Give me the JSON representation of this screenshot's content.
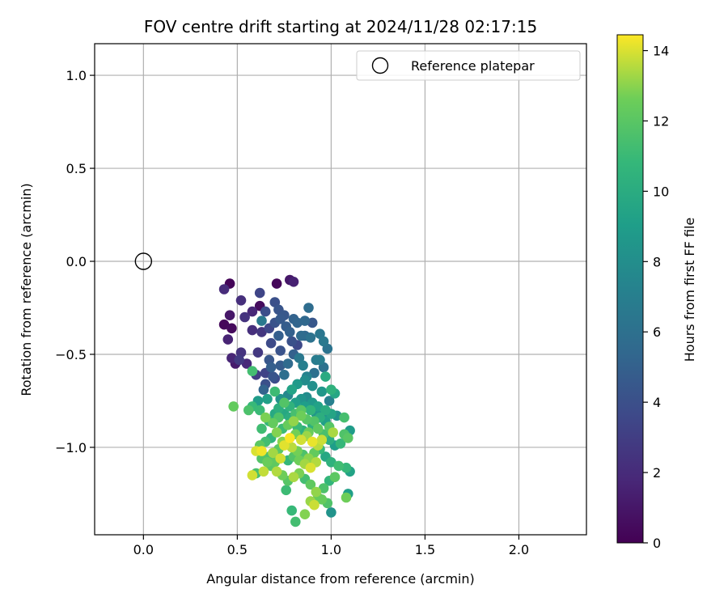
{
  "chart_data": {
    "type": "scatter",
    "title": "FOV centre drift starting at 2024/11/28 02:17:15",
    "xlabel": "Angular distance from reference (arcmin)",
    "ylabel": "Rotation from reference (arcmin)",
    "xlim": [
      -0.26,
      2.36
    ],
    "ylim": [
      -1.47,
      1.17
    ],
    "xticks": [
      0.0,
      0.5,
      1.0,
      1.5,
      2.0
    ],
    "xtick_labels": [
      "0.0",
      "0.5",
      "1.0",
      "1.5",
      "2.0"
    ],
    "yticks": [
      1.0,
      0.5,
      0.0,
      -0.5,
      -1.0
    ],
    "ytick_labels": [
      "1.0",
      "0.5",
      "0.0",
      "−0.5",
      "−1.0"
    ],
    "grid": true,
    "legend": {
      "placement": "top-right",
      "entries": [
        "Reference platepar"
      ]
    },
    "reference_point": {
      "x": 0.0,
      "y": 0.0,
      "label": "Reference platepar",
      "marker": "open circle"
    },
    "colorbar": {
      "label": "Hours from first FF file",
      "colormap": "viridis",
      "range": [
        0,
        14.45
      ],
      "ticks": [
        0,
        2,
        4,
        6,
        8,
        10,
        12,
        14
      ],
      "tick_labels": [
        "0",
        "2",
        "4",
        "6",
        "8",
        "10",
        "12",
        "14"
      ]
    },
    "points": [
      [
        0.46,
        -0.12,
        0.2
      ],
      [
        0.71,
        -0.12,
        0.3
      ],
      [
        0.78,
        -0.1,
        1.0
      ],
      [
        0.8,
        -0.11,
        1.5
      ],
      [
        0.43,
        -0.34,
        0.3
      ],
      [
        0.47,
        -0.36,
        0.4
      ],
      [
        0.46,
        -0.29,
        1.0
      ],
      [
        0.45,
        -0.42,
        1.6
      ],
      [
        0.43,
        -0.15,
        2.0
      ],
      [
        0.52,
        -0.21,
        2.2
      ],
      [
        0.62,
        -0.24,
        0.5
      ],
      [
        0.58,
        -0.27,
        1.8
      ],
      [
        0.54,
        -0.3,
        2.4
      ],
      [
        0.58,
        -0.37,
        2.2
      ],
      [
        0.63,
        -0.38,
        2.6
      ],
      [
        0.47,
        -0.52,
        1.7
      ],
      [
        0.49,
        -0.55,
        1.2
      ],
      [
        0.52,
        -0.49,
        2.4
      ],
      [
        0.51,
        -0.53,
        2.8
      ],
      [
        0.55,
        -0.55,
        1.9
      ],
      [
        0.61,
        -0.49,
        2.7
      ],
      [
        0.6,
        -0.61,
        3.0
      ],
      [
        0.62,
        -0.17,
        3.4
      ],
      [
        0.65,
        -0.27,
        3.9
      ],
      [
        0.7,
        -0.22,
        4.0
      ],
      [
        0.72,
        -0.26,
        4.3
      ],
      [
        0.73,
        -0.31,
        4.6
      ],
      [
        0.75,
        -0.29,
        4.5
      ],
      [
        0.7,
        -0.33,
        4.2
      ],
      [
        0.76,
        -0.35,
        4.8
      ],
      [
        0.78,
        -0.38,
        5.0
      ],
      [
        0.8,
        -0.31,
        5.1
      ],
      [
        0.82,
        -0.33,
        5.3
      ],
      [
        0.86,
        -0.32,
        5.5
      ],
      [
        0.88,
        -0.25,
        5.8
      ],
      [
        0.9,
        -0.33,
        4.4
      ],
      [
        0.84,
        -0.4,
        5.7
      ],
      [
        0.79,
        -0.43,
        4.1
      ],
      [
        0.72,
        -0.4,
        4.9
      ],
      [
        0.68,
        -0.44,
        3.7
      ],
      [
        0.73,
        -0.48,
        4.2
      ],
      [
        0.8,
        -0.5,
        5.0
      ],
      [
        0.82,
        -0.45,
        3.6
      ],
      [
        0.86,
        -0.4,
        5.4
      ],
      [
        0.89,
        -0.41,
        6.1
      ],
      [
        0.94,
        -0.39,
        6.4
      ],
      [
        0.96,
        -0.43,
        6.6
      ],
      [
        0.98,
        -0.47,
        6.2
      ],
      [
        0.92,
        -0.53,
        6.8
      ],
      [
        0.91,
        -0.6,
        6.0
      ],
      [
        0.87,
        -0.62,
        7.2
      ],
      [
        0.85,
        -0.56,
        7.0
      ],
      [
        0.83,
        -0.52,
        6.5
      ],
      [
        0.77,
        -0.55,
        5.6
      ],
      [
        0.73,
        -0.56,
        4.7
      ],
      [
        0.69,
        -0.62,
        4.3
      ],
      [
        0.65,
        -0.66,
        4.0
      ],
      [
        0.64,
        -0.69,
        5.2
      ],
      [
        0.7,
        -0.63,
        3.8
      ],
      [
        0.75,
        -0.61,
        5.9
      ],
      [
        0.65,
        -0.6,
        3.3
      ],
      [
        0.67,
        -0.53,
        4.4
      ],
      [
        0.68,
        -0.57,
        4.9
      ],
      [
        0.63,
        -0.32,
        6.6
      ],
      [
        0.67,
        -0.36,
        3.5
      ],
      [
        0.94,
        -0.53,
        6.9
      ],
      [
        0.96,
        -0.57,
        6.1
      ],
      [
        0.99,
        -0.75,
        7.1
      ],
      [
        0.97,
        -0.62,
        9.9
      ],
      [
        1.0,
        -0.69,
        10.4
      ],
      [
        1.02,
        -0.71,
        9.6
      ],
      [
        0.95,
        -0.7,
        8.6
      ],
      [
        0.9,
        -0.67,
        8.1
      ],
      [
        0.86,
        -0.64,
        7.9
      ],
      [
        0.82,
        -0.66,
        8.8
      ],
      [
        0.79,
        -0.69,
        9.4
      ],
      [
        0.77,
        -0.72,
        7.6
      ],
      [
        0.73,
        -0.74,
        8.3
      ],
      [
        0.7,
        -0.7,
        11.1
      ],
      [
        0.66,
        -0.74,
        9.2
      ],
      [
        0.61,
        -0.75,
        8.9
      ],
      [
        0.58,
        -0.78,
        10.9
      ],
      [
        0.56,
        -0.8,
        11.6
      ],
      [
        0.58,
        -0.59,
        11.3
      ],
      [
        0.48,
        -0.78,
        12.3
      ],
      [
        0.62,
        -0.8,
        11.0
      ],
      [
        0.65,
        -0.84,
        12.8
      ],
      [
        0.63,
        -0.9,
        11.2
      ],
      [
        0.67,
        -0.86,
        10.7
      ],
      [
        0.7,
        -0.82,
        9.8
      ],
      [
        0.72,
        -0.79,
        10.2
      ],
      [
        0.75,
        -0.76,
        11.8
      ],
      [
        0.78,
        -0.78,
        10.5
      ],
      [
        0.81,
        -0.76,
        9.1
      ],
      [
        0.84,
        -0.74,
        8.4
      ],
      [
        0.87,
        -0.73,
        7.8
      ],
      [
        0.9,
        -0.76,
        8.7
      ],
      [
        0.93,
        -0.78,
        9.3
      ],
      [
        0.97,
        -0.8,
        10.0
      ],
      [
        1.0,
        -0.82,
        9.5
      ],
      [
        1.03,
        -0.83,
        8.2
      ],
      [
        1.07,
        -0.84,
        11.4
      ],
      [
        1.1,
        -0.91,
        8.9
      ],
      [
        1.09,
        -0.95,
        12.0
      ],
      [
        1.07,
        -0.93,
        11.7
      ],
      [
        1.05,
        -0.98,
        10.8
      ],
      [
        1.02,
        -0.99,
        9.0
      ],
      [
        0.99,
        -0.96,
        10.1
      ],
      [
        0.96,
        -0.93,
        11.5
      ],
      [
        0.93,
        -0.9,
        12.2
      ],
      [
        0.9,
        -0.88,
        10.3
      ],
      [
        0.87,
        -0.85,
        11.9
      ],
      [
        0.84,
        -0.83,
        12.6
      ],
      [
        0.8,
        -0.86,
        13.1
      ],
      [
        0.77,
        -0.88,
        12.4
      ],
      [
        0.74,
        -0.9,
        11.1
      ],
      [
        0.71,
        -0.92,
        12.9
      ],
      [
        0.68,
        -0.95,
        10.6
      ],
      [
        0.65,
        -0.97,
        11.3
      ],
      [
        0.62,
        -0.99,
        12.1
      ],
      [
        0.6,
        -1.02,
        14.0
      ],
      [
        0.63,
        -1.06,
        11.8
      ],
      [
        0.66,
        -1.08,
        12.5
      ],
      [
        0.69,
        -1.03,
        13.3
      ],
      [
        0.72,
        -1.01,
        12.0
      ],
      [
        0.75,
        -0.99,
        14.1
      ],
      [
        0.79,
        -1.0,
        13.6
      ],
      [
        0.82,
        -1.02,
        12.7
      ],
      [
        0.85,
        -1.04,
        11.6
      ],
      [
        0.88,
        -1.06,
        13.0
      ],
      [
        0.91,
        -1.03,
        12.3
      ],
      [
        0.94,
        -1.01,
        10.9
      ],
      [
        0.97,
        -1.05,
        9.7
      ],
      [
        1.0,
        -1.08,
        10.4
      ],
      [
        1.04,
        -1.1,
        11.2
      ],
      [
        1.08,
        -1.11,
        10.8
      ],
      [
        1.1,
        -1.13,
        9.4
      ],
      [
        1.08,
        -1.27,
        12.6
      ],
      [
        1.09,
        -1.25,
        9.1
      ],
      [
        1.0,
        -1.35,
        8.3
      ],
      [
        0.98,
        -1.3,
        11.7
      ],
      [
        0.95,
        -1.28,
        12.4
      ],
      [
        0.92,
        -1.24,
        13.1
      ],
      [
        0.89,
        -1.2,
        12.2
      ],
      [
        0.86,
        -1.17,
        11.3
      ],
      [
        0.83,
        -1.14,
        12.8
      ],
      [
        0.8,
        -1.16,
        13.4
      ],
      [
        0.77,
        -1.18,
        11.9
      ],
      [
        0.74,
        -1.15,
        12.6
      ],
      [
        0.71,
        -1.13,
        13.5
      ],
      [
        0.68,
        -1.1,
        12.0
      ],
      [
        0.64,
        -1.13,
        13.7
      ],
      [
        0.6,
        -1.14,
        11.5
      ],
      [
        0.58,
        -1.15,
        13.9
      ],
      [
        0.63,
        -1.02,
        14.3
      ],
      [
        0.76,
        -1.23,
        11.1
      ],
      [
        0.79,
        -1.34,
        10.9
      ],
      [
        0.81,
        -1.4,
        11.3
      ],
      [
        0.86,
        -1.36,
        12.9
      ],
      [
        0.89,
        -1.29,
        13.2
      ],
      [
        0.91,
        -1.31,
        13.8
      ],
      [
        0.93,
        -1.27,
        12.4
      ],
      [
        0.96,
        -1.22,
        11.6
      ],
      [
        0.99,
        -1.18,
        10.7
      ],
      [
        1.02,
        -1.16,
        12.1
      ],
      [
        0.87,
        -0.94,
        13.2
      ],
      [
        0.9,
        -0.97,
        14.2
      ],
      [
        0.93,
        -0.99,
        13.6
      ],
      [
        0.84,
        -0.96,
        13.9
      ],
      [
        0.81,
        -0.93,
        12.7
      ],
      [
        0.78,
        -0.95,
        14.4
      ],
      [
        0.74,
        -0.97,
        13.0
      ],
      [
        0.82,
        -0.89,
        11.0
      ],
      [
        0.85,
        -0.91,
        10.3
      ],
      [
        0.88,
        -0.92,
        12.5
      ],
      [
        0.91,
        -0.86,
        11.8
      ],
      [
        0.94,
        -0.84,
        10.2
      ],
      [
        0.97,
        -0.86,
        9.2
      ],
      [
        0.99,
        -0.89,
        11.9
      ],
      [
        1.01,
        -0.92,
        13.4
      ],
      [
        0.95,
        -0.96,
        13.8
      ],
      [
        0.92,
        -1.08,
        13.5
      ],
      [
        0.89,
        -1.11,
        14.0
      ],
      [
        0.86,
        -1.09,
        13.3
      ],
      [
        0.83,
        -1.07,
        12.6
      ],
      [
        0.8,
        -1.05,
        11.8
      ],
      [
        0.77,
        -1.07,
        10.8
      ],
      [
        0.73,
        -1.06,
        13.9
      ],
      [
        0.7,
        -1.08,
        12.2
      ],
      [
        0.67,
        -1.05,
        11.6
      ],
      [
        0.86,
        -0.78,
        9.0
      ],
      [
        0.89,
        -0.8,
        10.6
      ],
      [
        0.92,
        -0.82,
        8.5
      ],
      [
        0.95,
        -0.83,
        7.7
      ],
      [
        0.84,
        -0.8,
        12.0
      ],
      [
        0.81,
        -0.82,
        11.4
      ],
      [
        0.78,
        -0.84,
        10.1
      ],
      [
        0.75,
        -0.82,
        9.7
      ],
      [
        0.72,
        -0.84,
        11.7
      ],
      [
        0.69,
        -0.87,
        12.3
      ]
    ]
  }
}
